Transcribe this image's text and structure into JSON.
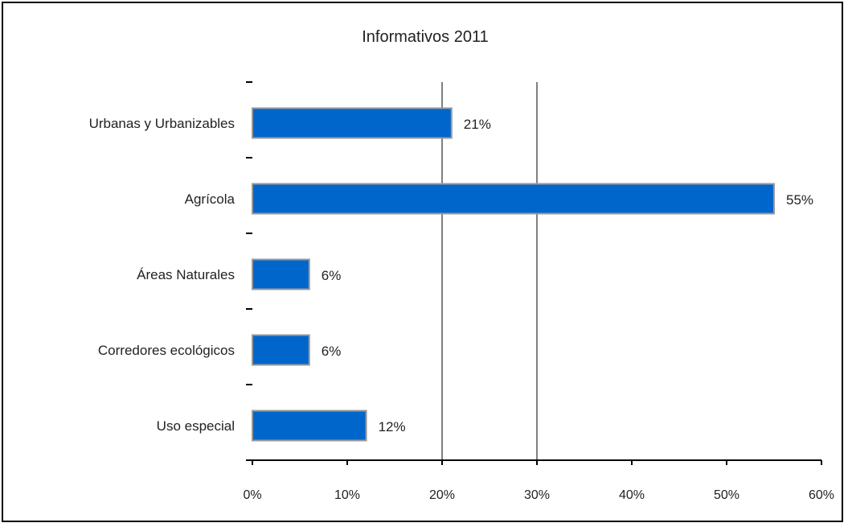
{
  "chart_data": {
    "type": "bar",
    "orientation": "horizontal",
    "title": "Informativos 2011",
    "categories": [
      "Urbanas y Urbanizables",
      "Agrícola",
      "Áreas Naturales",
      "Corredores ecológicos",
      "Uso especial"
    ],
    "values": [
      21,
      55,
      6,
      6,
      12
    ],
    "data_labels": [
      "21%",
      "55%",
      "6%",
      "6%",
      "12%"
    ],
    "xlim": [
      0,
      60
    ],
    "x_ticks": [
      0,
      10,
      20,
      30,
      40,
      50,
      60
    ],
    "x_tick_labels": [
      "0%",
      "10%",
      "20%",
      "30%",
      "40%",
      "50%",
      "60%"
    ],
    "highlight_gridlines": [
      20,
      30
    ],
    "bar_color": "#0066CC",
    "bar_edge_color": "#9a9a9a",
    "gridline_color": "#808080",
    "legend": "none"
  }
}
